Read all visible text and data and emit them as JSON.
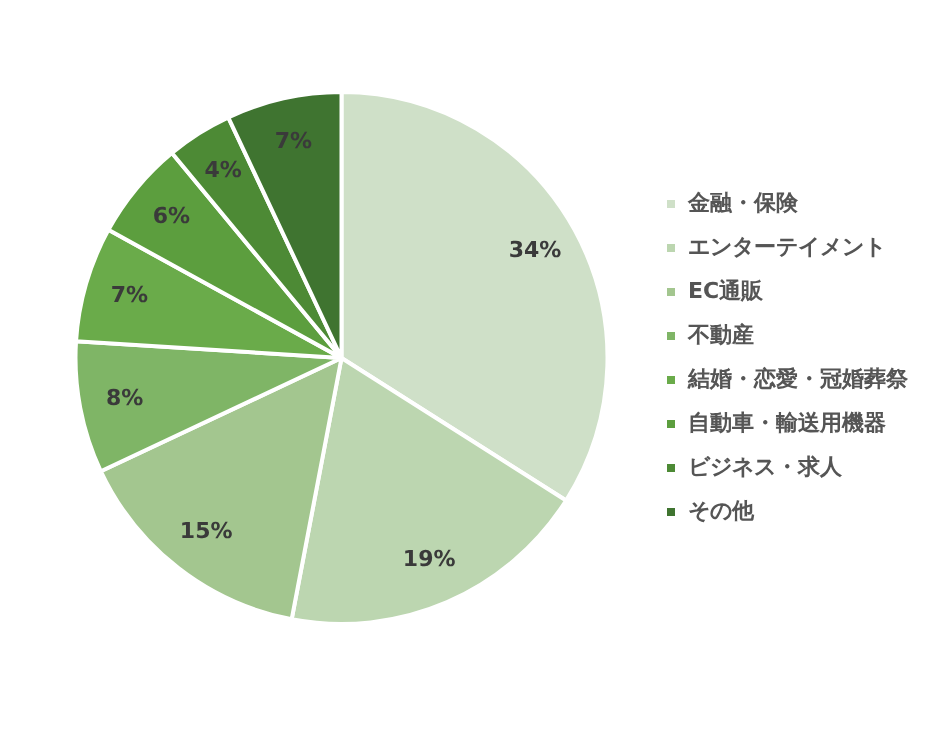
{
  "chart_data": {
    "type": "pie",
    "categories": [
      "金融・保険",
      "エンターテイメント",
      "EC通販",
      "不動産",
      "結婚・恋愛・冠婚葬祭",
      "自動車・輸送用機器",
      "ビジネス・求人",
      "その他"
    ],
    "values": [
      34,
      19,
      15,
      8,
      7,
      6,
      4,
      7
    ],
    "value_labels": [
      "34%",
      "19%",
      "15%",
      "8%",
      "7%",
      "6%",
      "4%",
      "7%"
    ],
    "colors": [
      "#cfe0c8",
      "#bcd6b0",
      "#a3c68f",
      "#7fb566",
      "#6aab4a",
      "#5c9e3e",
      "#4d8a35",
      "#3f7430"
    ],
    "legend": "right"
  }
}
